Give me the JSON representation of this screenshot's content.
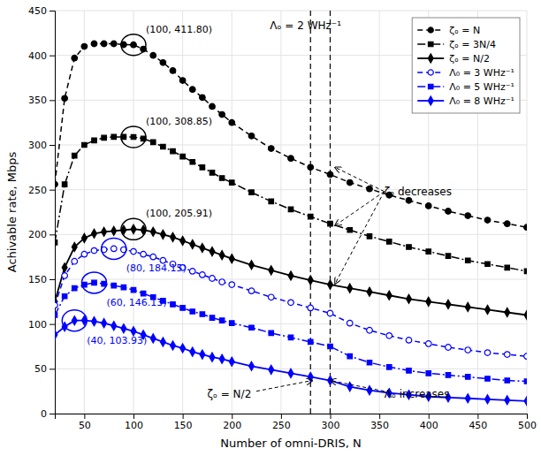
{
  "chart_data": {
    "type": "line",
    "xlabel": "Number of omni-DRIS, N",
    "ylabel": "Achivable rate, Mbps",
    "xlim": [
      20,
      500
    ],
    "ylim": [
      0,
      450
    ],
    "xticks": [
      50,
      100,
      150,
      200,
      250,
      300,
      350,
      400,
      450,
      500
    ],
    "yticks": [
      0,
      50,
      100,
      150,
      200,
      250,
      300,
      350,
      400,
      450
    ],
    "grid": true,
    "legend": "upper right",
    "x": [
      20,
      30,
      40,
      50,
      60,
      70,
      80,
      90,
      100,
      110,
      120,
      130,
      140,
      150,
      160,
      170,
      180,
      190,
      200,
      220,
      240,
      260,
      280,
      300,
      320,
      340,
      360,
      380,
      400,
      420,
      440,
      460,
      480,
      500
    ],
    "series": [
      {
        "name": "ζₒ = N",
        "color": "black",
        "marker": "circle",
        "line_style": "dashed",
        "values": [
          256,
          352,
          397,
          410,
          413,
          413,
          413,
          412,
          411.8,
          407,
          400,
          392,
          383,
          372,
          362,
          353,
          343,
          334,
          325,
          310,
          296,
          285,
          275,
          267,
          258,
          251,
          244,
          238,
          232,
          226,
          221,
          216,
          212,
          208
        ]
      },
      {
        "name": "ζₒ = 3N/4",
        "color": "black",
        "marker": "square",
        "line_style": "dashdot",
        "values": [
          191,
          256,
          288,
          300,
          305,
          308,
          309,
          309,
          308.85,
          307,
          303,
          298,
          293,
          287,
          281,
          275,
          269,
          263,
          258,
          247,
          237,
          228,
          220,
          212,
          205,
          198,
          192,
          186,
          181,
          176,
          171,
          167,
          163,
          159
        ]
      },
      {
        "name": "ζₒ = N/2",
        "color": "black",
        "marker": "diamond",
        "line_style": "solid",
        "values": [
          125,
          163,
          186,
          196,
          201,
          203,
          204,
          205,
          205.91,
          205,
          203,
          200,
          197,
          193,
          189,
          185,
          181,
          177,
          173,
          166,
          160,
          154,
          149,
          144,
          140,
          136,
          132,
          128,
          125,
          122,
          119,
          116,
          113,
          110
        ]
      },
      {
        "name": "Λ₀ = 3 WHz⁻¹",
        "color": "blue",
        "marker": "circle-open",
        "line_style": "dashed",
        "values": [
          121,
          154,
          170,
          178,
          182,
          183,
          184.15,
          183,
          181,
          178,
          175,
          171,
          167,
          163,
          159,
          155,
          151,
          147,
          144,
          137,
          130,
          124,
          118,
          112,
          101,
          93,
          87,
          82,
          78,
          74,
          71,
          68,
          66,
          64
        ]
      },
      {
        "name": "Λ₀ = 5 WHz⁻¹",
        "color": "blue",
        "marker": "square",
        "line_style": "dashdot",
        "values": [
          110,
          131,
          140,
          144,
          146.13,
          145,
          143,
          141,
          138,
          134,
          130,
          126,
          122,
          118,
          114,
          111,
          107,
          104,
          101,
          96,
          90,
          85,
          80,
          75,
          64,
          57,
          52,
          48,
          45,
          43,
          41,
          39,
          37,
          36
        ]
      },
      {
        "name": "Λ₀ = 8 WHz⁻¹",
        "color": "blue",
        "marker": "diamond",
        "line_style": "solid",
        "values": [
          88,
          97,
          103.93,
          104,
          103,
          101,
          98,
          95,
          92,
          88,
          84,
          80,
          76,
          73,
          69,
          66,
          63,
          61,
          58,
          53,
          49,
          45,
          41,
          37,
          30,
          26,
          23,
          21,
          19,
          18,
          17,
          16,
          15,
          14
        ]
      }
    ],
    "peaks": [
      {
        "x": 100,
        "y": 411.8,
        "label": "(100, 411.80)",
        "color": "black"
      },
      {
        "x": 100,
        "y": 308.85,
        "label": "(100, 308.85)",
        "color": "black"
      },
      {
        "x": 100,
        "y": 205.91,
        "label": "(100, 205.91)",
        "color": "black"
      },
      {
        "x": 80,
        "y": 184.15,
        "label": "(80, 184.15)",
        "color": "blue"
      },
      {
        "x": 60,
        "y": 146.13,
        "label": "(60, 146.13)",
        "color": "blue"
      },
      {
        "x": 40,
        "y": 103.93,
        "label": "(40, 103.93)",
        "color": "blue"
      }
    ],
    "vlines": [
      280,
      300
    ],
    "annotations": [
      {
        "text": "Λₒ = 2 WHz⁻¹",
        "x": 275,
        "y": 438
      },
      {
        "text": "ζₒ decreases",
        "x": 355,
        "y": 248,
        "arrows": [
          {
            "from": [
              355,
              248
            ],
            "to": [
              305,
              275
            ]
          },
          {
            "from": [
              355,
              248
            ],
            "to": [
              305,
              210
            ]
          },
          {
            "from": [
              355,
              248
            ],
            "to": [
              305,
              145
            ]
          }
        ]
      },
      {
        "text": "ζₒ = N/2",
        "x": 175,
        "y": 18,
        "arrows": [
          {
            "from": [
              225,
              25
            ],
            "to": [
              282,
              37
            ]
          }
        ]
      },
      {
        "text": "Λₒ increases",
        "x": 355,
        "y": 18,
        "arrows": [
          {
            "from": [
              355,
              25
            ],
            "to": [
              300,
              37
            ]
          }
        ]
      }
    ]
  }
}
